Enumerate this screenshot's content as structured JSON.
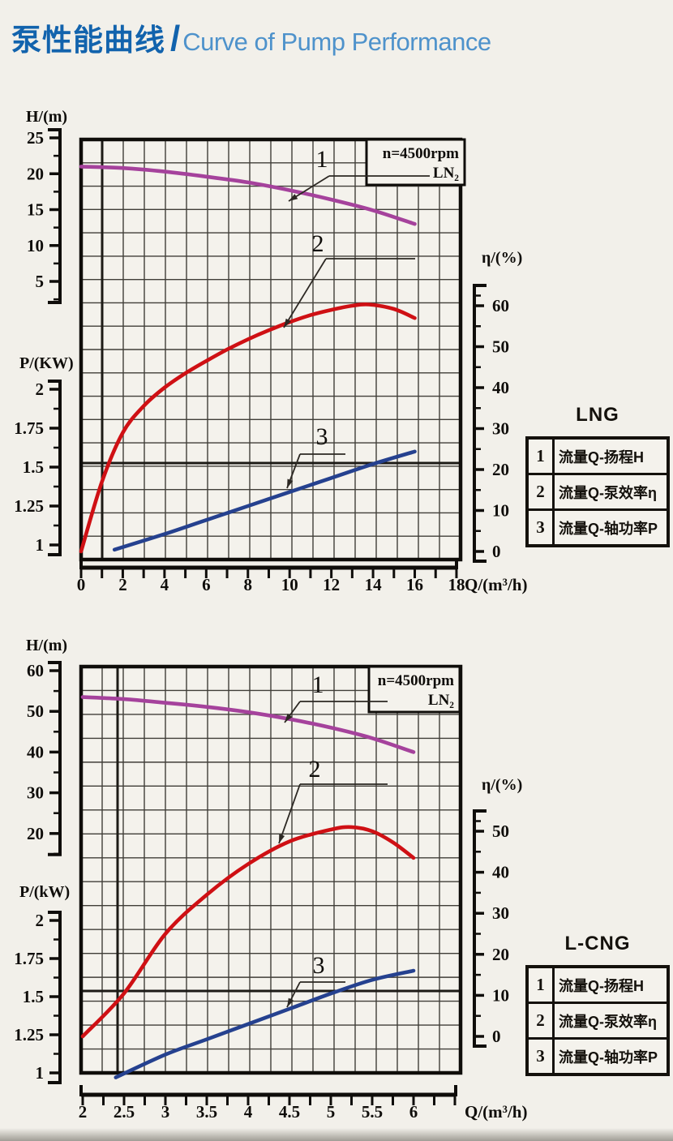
{
  "header": {
    "title_zh": "泵性能曲线",
    "divider": "/",
    "title_en": "Curve of Pump Performance"
  },
  "colors": {
    "title_zh": "#1263ad",
    "title_en": "#4e92cb",
    "page_bg": "#f2f0ea",
    "plot_bg": "#f4f2ec",
    "grid": "#403e38",
    "axis": "#0f0d0a",
    "curve_head": "#a5429c",
    "curve_efficiency": "#cf1014",
    "curve_power": "#25418f"
  },
  "chart_data": [
    {
      "id": "lng",
      "type": "line",
      "annotation": {
        "line1": "n=4500rpm",
        "line2": "LN₂"
      },
      "x_axis": {
        "label": "Q/(m³/h)",
        "ticks": [
          0,
          2,
          4,
          6,
          8,
          10,
          12,
          14,
          16,
          18
        ],
        "minor_step": 1,
        "range": [
          0,
          18
        ]
      },
      "y_axes": {
        "h": {
          "label": "H/(m)",
          "ticks": [
            25,
            20,
            15,
            10,
            5
          ]
        },
        "p": {
          "label": "P/(KW)",
          "ticks": [
            2,
            1.75,
            1.5,
            1.25,
            1
          ]
        },
        "eta": {
          "label": "η/(%)",
          "ticks": [
            60,
            50,
            40,
            30,
            20,
            10,
            0
          ]
        }
      },
      "series": [
        {
          "id": "1",
          "name": "流量Q-扬程H",
          "axis": "h",
          "color_key": "curve_head",
          "points": [
            [
              0,
              21
            ],
            [
              2,
              20.8
            ],
            [
              4,
              20.3
            ],
            [
              6,
              19.6
            ],
            [
              8,
              18.8
            ],
            [
              10,
              17.7
            ],
            [
              12,
              16.4
            ],
            [
              14,
              14.9
            ],
            [
              16,
              13
            ]
          ]
        },
        {
          "id": "2",
          "name": "流量Q-泵效率η",
          "axis": "eta",
          "color_key": "curve_efficiency",
          "points": [
            [
              0,
              0
            ],
            [
              1,
              17
            ],
            [
              2,
              29
            ],
            [
              3,
              35.5
            ],
            [
              4,
              40
            ],
            [
              5,
              43.5
            ],
            [
              6,
              46.5
            ],
            [
              7,
              49.3
            ],
            [
              8,
              51.8
            ],
            [
              9,
              54
            ],
            [
              10,
              56
            ],
            [
              11,
              57.7
            ],
            [
              12,
              59
            ],
            [
              13,
              60
            ],
            [
              13.8,
              60.3
            ],
            [
              15,
              59.2
            ],
            [
              16,
              57
            ]
          ]
        },
        {
          "id": "3",
          "name": "流量Q-轴功率P",
          "axis": "p",
          "color_key": "curve_power",
          "points": [
            [
              1.6,
              0.97
            ],
            [
              4,
              1.07
            ],
            [
              6,
              1.16
            ],
            [
              8,
              1.25
            ],
            [
              10,
              1.34
            ],
            [
              12,
              1.43
            ],
            [
              14,
              1.52
            ],
            [
              16,
              1.6
            ]
          ]
        }
      ]
    },
    {
      "id": "lcng",
      "type": "line",
      "annotation": {
        "line1": "n=4500rpm",
        "line2": "LN₂"
      },
      "x_axis": {
        "label": "Q/(m³/h)",
        "ticks": [
          2,
          2.5,
          3,
          3.5,
          4,
          4.5,
          5,
          5.5,
          6
        ],
        "minor_step": 0.25,
        "range": [
          2,
          6.5
        ]
      },
      "y_axes": {
        "h": {
          "label": "H/(m)",
          "ticks": [
            60,
            50,
            40,
            30,
            20
          ]
        },
        "p": {
          "label": "P/(kW)",
          "ticks": [
            2,
            1.75,
            1.5,
            1.25,
            1
          ]
        },
        "eta": {
          "label": "η/(%)",
          "ticks": [
            50,
            40,
            30,
            20,
            10,
            0
          ]
        }
      },
      "series": [
        {
          "id": "1",
          "name": "流量Q-扬程H",
          "axis": "h",
          "color_key": "curve_head",
          "points": [
            [
              2,
              53.5
            ],
            [
              2.5,
              53
            ],
            [
              3,
              52.1
            ],
            [
              3.5,
              51.1
            ],
            [
              4,
              49.8
            ],
            [
              4.5,
              48.1
            ],
            [
              5,
              46
            ],
            [
              5.5,
              43.4
            ],
            [
              6,
              40
            ]
          ]
        },
        {
          "id": "2",
          "name": "流量Q-泵效率η",
          "axis": "eta",
          "color_key": "curve_efficiency",
          "points": [
            [
              2,
              0
            ],
            [
              2.5,
              10.5
            ],
            [
              3,
              25
            ],
            [
              3.5,
              34.5
            ],
            [
              4,
              42
            ],
            [
              4.5,
              47.5
            ],
            [
              5,
              50.4
            ],
            [
              5.25,
              51
            ],
            [
              5.5,
              50
            ],
            [
              5.75,
              47.3
            ],
            [
              6,
              43.5
            ]
          ]
        },
        {
          "id": "3",
          "name": "流量Q-轴功率P",
          "axis": "p",
          "color_key": "curve_power",
          "points": [
            [
              2.4,
              0.97
            ],
            [
              3,
              1.12
            ],
            [
              3.5,
              1.22
            ],
            [
              4,
              1.32
            ],
            [
              4.5,
              1.42
            ],
            [
              5,
              1.52
            ],
            [
              5.5,
              1.61
            ],
            [
              6,
              1.67
            ]
          ]
        }
      ]
    }
  ],
  "legends": [
    {
      "title": "LNG",
      "rows": [
        {
          "num": "1",
          "label": "流量Q-扬程H"
        },
        {
          "num": "2",
          "label": "流量Q-泵效率η"
        },
        {
          "num": "3",
          "label": "流量Q-轴功率P"
        }
      ]
    },
    {
      "title": "L-CNG",
      "rows": [
        {
          "num": "1",
          "label": "流量Q-扬程H"
        },
        {
          "num": "2",
          "label": "流量Q-泵效率η"
        },
        {
          "num": "3",
          "label": "流量Q-轴功率P"
        }
      ]
    }
  ]
}
